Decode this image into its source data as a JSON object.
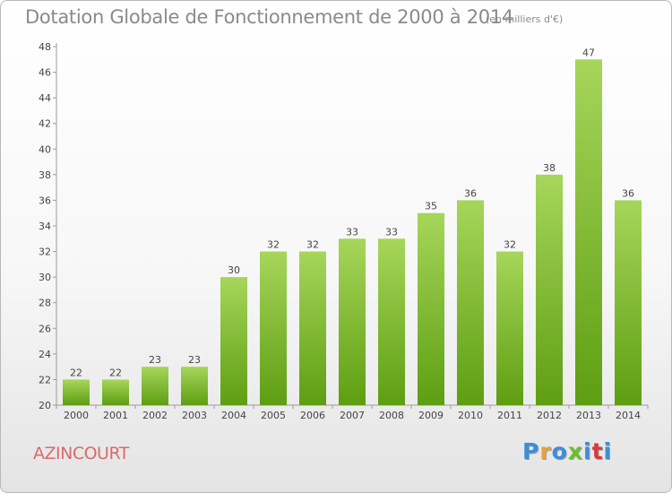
{
  "header": {
    "title": "Dotation Globale de Fonctionnement de 2000 à 2014",
    "subtitle": "(en milliers d'€)"
  },
  "footer": {
    "commune": "AZINCOURT",
    "logo": "Proxiti",
    "logo_colors": [
      "#3a8fd6",
      "#e8a23c",
      "#3a8fd6",
      "#6abf2e",
      "#3a8fd6",
      "#d63a3a",
      "#3a8fd6"
    ]
  },
  "chart_data": {
    "type": "bar",
    "title": "Dotation Globale de Fonctionnement de 2000 à 2014",
    "subtitle": "(en milliers d'€)",
    "xlabel": "",
    "ylabel": "",
    "categories": [
      "2000",
      "2001",
      "2002",
      "2003",
      "2004",
      "2005",
      "2006",
      "2007",
      "2008",
      "2009",
      "2010",
      "2011",
      "2012",
      "2013",
      "2014"
    ],
    "values": [
      22,
      22,
      23,
      23,
      30,
      32,
      32,
      33,
      33,
      35,
      36,
      32,
      38,
      47,
      36
    ],
    "ylim": [
      20,
      48
    ],
    "yticks": [
      20,
      22,
      24,
      26,
      28,
      30,
      32,
      34,
      36,
      38,
      40,
      42,
      44,
      46,
      48
    ],
    "grid": false,
    "bar_color": "#7cbf2a",
    "bar_color_light": "#a6d65a",
    "bar_color_dark": "#5e9e12"
  }
}
